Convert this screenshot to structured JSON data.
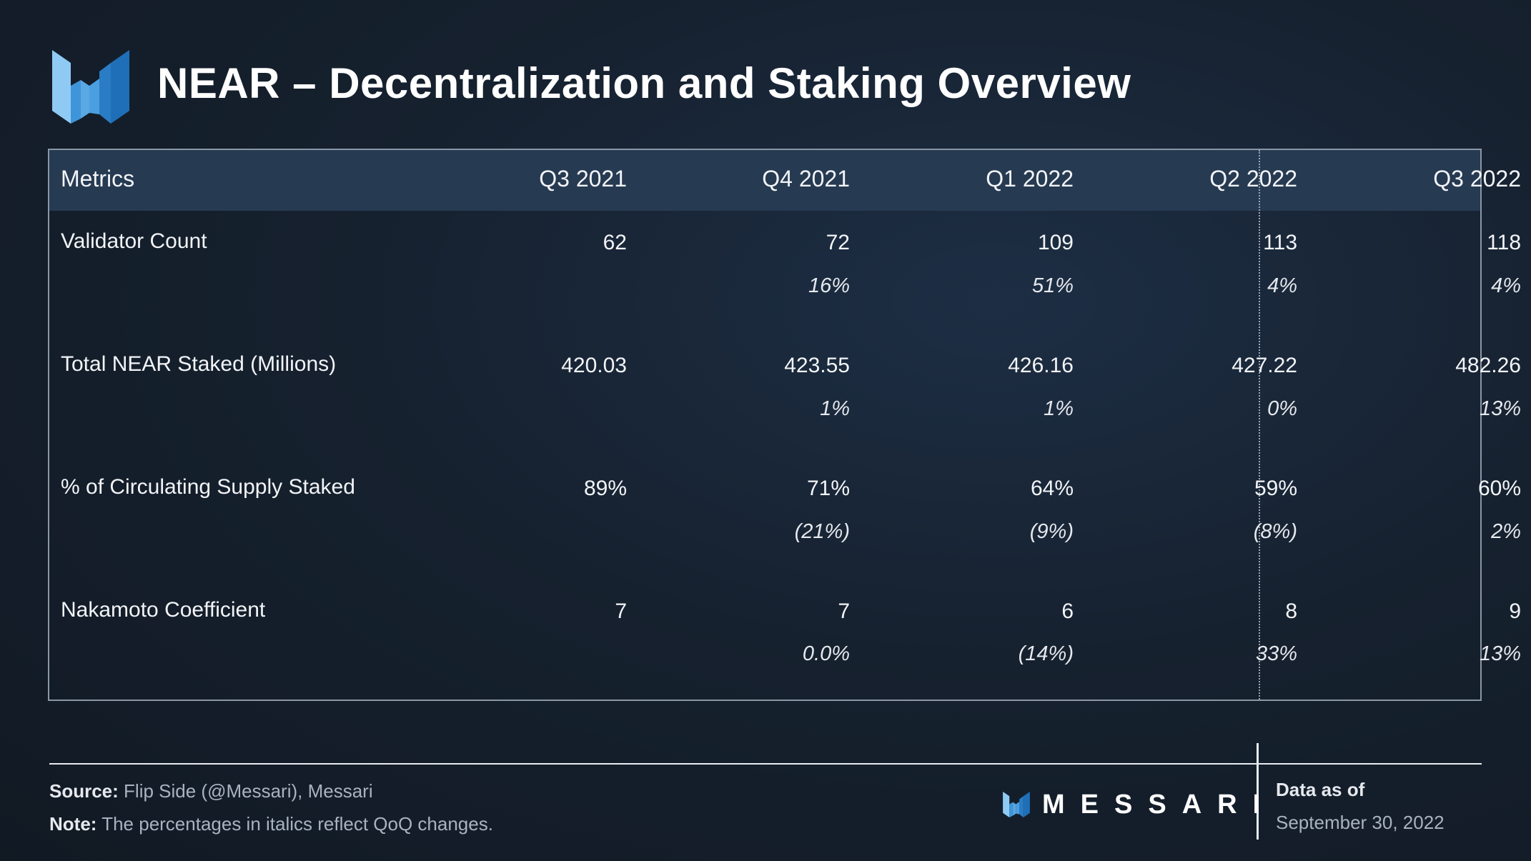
{
  "title": "NEAR – Decentralization and Staking Overview",
  "chart_data": {
    "type": "table",
    "columns": [
      "Metrics",
      "Q3 2021",
      "Q4 2021",
      "Q1 2022",
      "Q2 2022",
      "Q3 2022"
    ],
    "rows": [
      {
        "metric": "Validator Count",
        "values": [
          "62",
          "72",
          "109",
          "113",
          "118"
        ],
        "changes": [
          "",
          "16%",
          "51%",
          "4%",
          "4%"
        ]
      },
      {
        "metric": "Total NEAR Staked (Millions)",
        "values": [
          "420.03",
          "423.55",
          "426.16",
          "427.22",
          "482.26"
        ],
        "changes": [
          "",
          "1%",
          "1%",
          "0%",
          "13%"
        ]
      },
      {
        "metric": "% of Circulating Supply Staked",
        "values": [
          "89%",
          "71%",
          "64%",
          "59%",
          "60%"
        ],
        "changes": [
          "",
          "(21%)",
          "(9%)",
          "(8%)",
          "2%"
        ]
      },
      {
        "metric": "Nakamoto Coefficient",
        "values": [
          "7",
          "7",
          "6",
          "8",
          "9"
        ],
        "changes": [
          "",
          "0.0%",
          "(14%)",
          "33%",
          "13%"
        ]
      }
    ]
  },
  "footer": {
    "source_label": "Source:",
    "source_text": "Flip Side (@Messari), Messari",
    "note_label": "Note:",
    "note_text": "The percentages in italics reflect QoQ changes.",
    "brand": "MESSARI",
    "asof_label": "Data as of",
    "asof_date": "September 30, 2022"
  },
  "colors": {
    "logo_light": "#7fc1f2",
    "logo_mid": "#3f95d9",
    "logo_dark": "#1f6fb8",
    "header_band": "#263a52"
  },
  "icons": {
    "header_logo": "messari-logo-icon",
    "footer_logo": "messari-logo-icon"
  }
}
